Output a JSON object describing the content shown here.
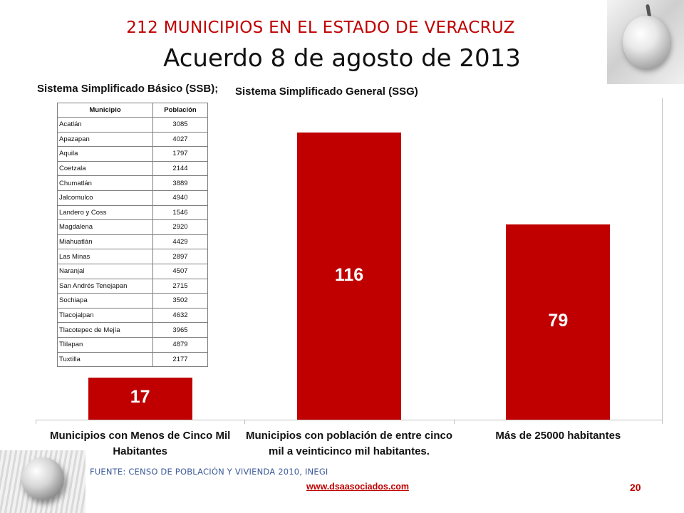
{
  "header": {
    "title": "212 MUNICIPIOS EN EL ESTADO DE VERACRUZ",
    "subtitle": "Acuerdo 8 de agosto de 2013"
  },
  "labels": {
    "ssb": "Sistema Simplificado Básico (SSB);",
    "ssg": "Sistema Simplificado General (SSG)"
  },
  "table": {
    "headers": [
      "Municipio",
      "Población"
    ],
    "rows": [
      [
        "Acatlán",
        "3085"
      ],
      [
        "Apazapan",
        "4027"
      ],
      [
        "Aquila",
        "1797"
      ],
      [
        "Coetzala",
        "2144"
      ],
      [
        "Chumatlán",
        "3889"
      ],
      [
        "Jalcomulco",
        "4940"
      ],
      [
        "Landero y Coss",
        "1546"
      ],
      [
        "Magdalena",
        "2920"
      ],
      [
        "Miahuatlán",
        "4429"
      ],
      [
        "Las Minas",
        "2897"
      ],
      [
        "Naranjal",
        "4507"
      ],
      [
        "San Andrés Tenejapan",
        "2715"
      ],
      [
        "Sochiapa",
        "3502"
      ],
      [
        "Tlacojalpan",
        "4632"
      ],
      [
        "Tlacotepec de Mejía",
        "3965"
      ],
      [
        "Tlilapan",
        "4879"
      ],
      [
        "Tuxtilla",
        "2177"
      ]
    ]
  },
  "chart_data": {
    "type": "bar",
    "categories": [
      "Municipios con Menos de Cinco Mil Habitantes",
      "Municipios con población de entre cinco mil a veinticinco mil habitantes.",
      "Más de 25000 habitantes"
    ],
    "values": [
      17,
      116,
      79
    ],
    "data_labels": [
      "17",
      "116",
      "79"
    ],
    "ylim": [
      0,
      116
    ],
    "grid": false,
    "bar_color": "#c00000",
    "label_color": "#ffffff"
  },
  "footer": {
    "source": "FUENTE: CENSO DE POBLACIÓN Y VIVIENDA 2010, INEGI",
    "website": "www.dsaasociados.com",
    "page_number": "20"
  },
  "colors": {
    "title_red": "#c00000",
    "source_blue": "#3b5a9a"
  }
}
